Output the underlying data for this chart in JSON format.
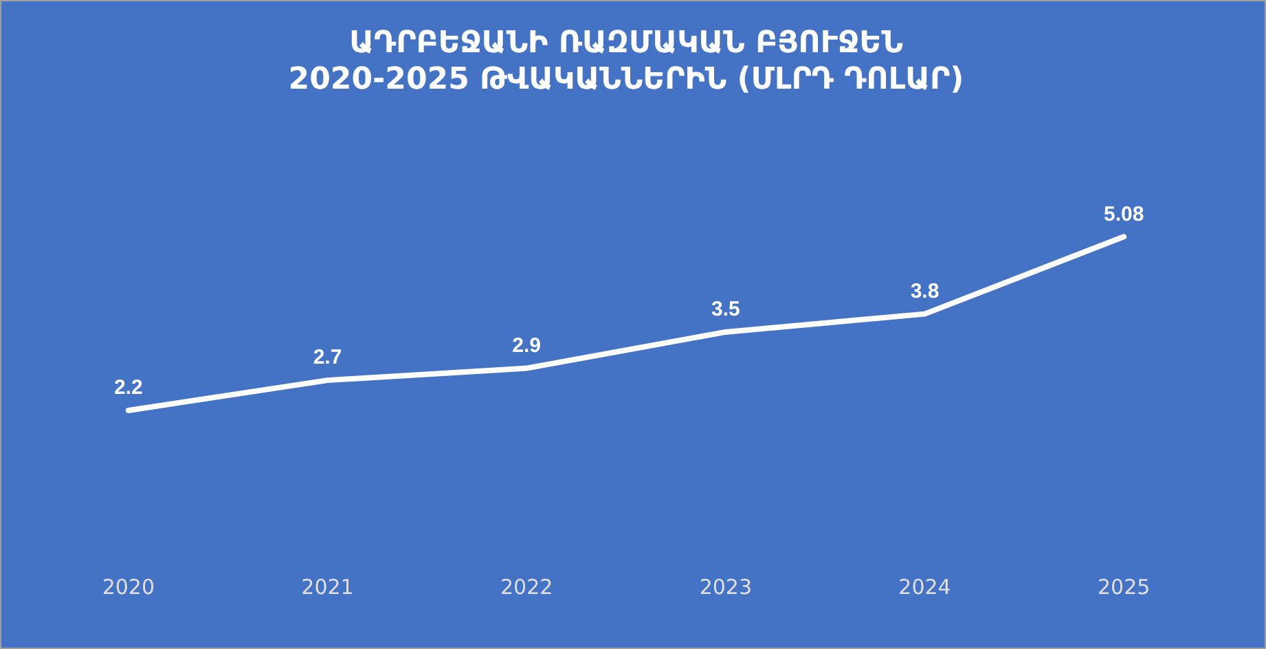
{
  "chart_data": {
    "type": "line",
    "title": "ԱԴՐԲԵՋԱՆԻ ՌԱԶՄԱԿԱՆ ԲՅՈՒՋԵՆ\n2020-2025 ԹՎԱԿԱՆՆԵՐԻՆ (ՄԼՐԴ ԴՈԼԱՐ)",
    "categories": [
      "2020",
      "2021",
      "2022",
      "2023",
      "2024",
      "2025"
    ],
    "values": [
      2.2,
      2.7,
      2.9,
      3.5,
      3.8,
      5.08
    ],
    "color": "#ffffff",
    "tick_labels": "x",
    "data_labels": true,
    "grid": false,
    "legend": false,
    "line_style": "solid"
  }
}
